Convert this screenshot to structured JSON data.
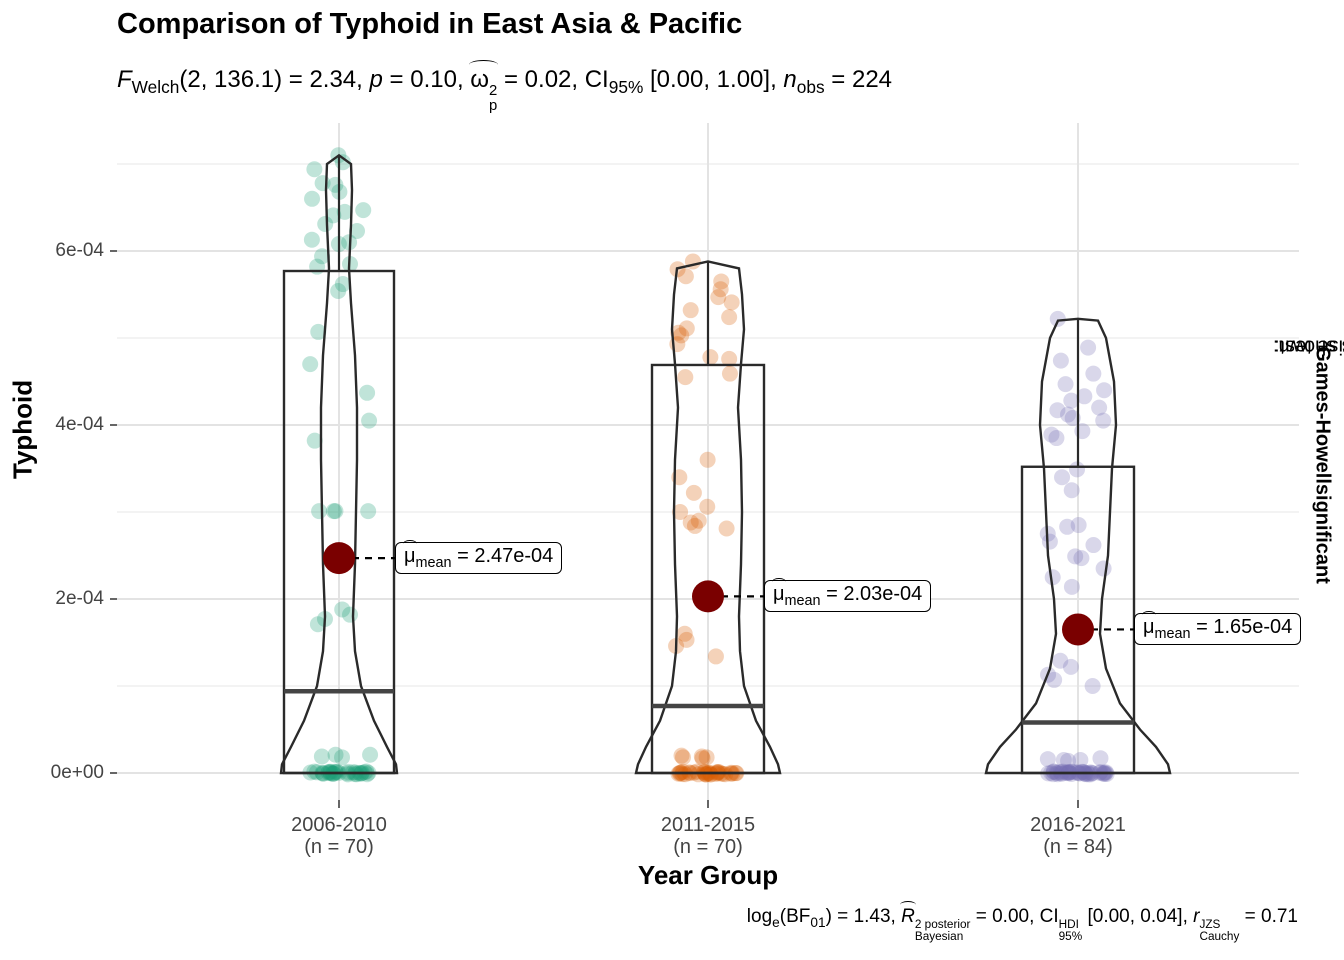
{
  "chart_data": {
    "type": "violin-box-scatter",
    "title": "Comparison of Typhoid in East Asia & Pacific",
    "subtitle": {
      "stat": "2.34",
      "df": "2, 136.1",
      "p": "0.10",
      "omega2": "0.02",
      "ci": "[0.00, 1.00]",
      "n_obs": "224"
    },
    "caption": {
      "log_bf01": "1.43",
      "r2_bayes": "0.00",
      "ci_hdi": "[0.00, 0.04]",
      "r_cauchy": "0.71"
    },
    "xlabel": "Year Group",
    "ylabel": "Typhoid",
    "right_label": {
      "prefix": "Pairwise test: ",
      "test": "Games-Howell",
      "middle": ", Bars shown: ",
      "shown": "significant"
    },
    "ylim": [
      -2e-08,
      0.00074
    ],
    "y_ticks": [
      {
        "value": 0.0,
        "label": "0e+00"
      },
      {
        "value": 0.0002,
        "label": "2e-04"
      },
      {
        "value": 0.0004,
        "label": "4e-04"
      },
      {
        "value": 0.0006,
        "label": "6e-04"
      }
    ],
    "grid": true,
    "groups": [
      {
        "category": "2006-2010",
        "n_label": "(n = 70)",
        "color": "#1B9E77",
        "mean": 0.000247,
        "mean_label": "2.47e-04",
        "box": {
          "q1": 0.0,
          "median": 9.4e-05,
          "q3": 0.000577,
          "whisker_low": 0.0,
          "whisker_high": 0.00071
        },
        "violin_max": 0.00071,
        "points": [
          0.00071,
          0.000702,
          0.000694,
          0.000678,
          0.000676,
          0.000668,
          0.00066,
          0.000647,
          0.000645,
          0.000641,
          0.000631,
          0.000623,
          0.00061,
          0.000613,
          0.000608,
          0.000594,
          0.000585,
          0.000582,
          0.000562,
          0.000554,
          0.000507,
          0.00047,
          0.000437,
          0.000405,
          0.000382,
          0.000301,
          0.000301,
          0.000301,
          0.000301,
          0.000188,
          0.000182,
          0.000177,
          0.000171,
          2.1e-05,
          2.1e-05,
          1.9e-05,
          1.8e-05,
          0.0,
          0.0,
          0.0,
          0.0,
          0.0,
          0.0,
          0.0,
          0.0,
          0.0,
          0.0,
          0.0,
          0.0,
          0.0,
          0.0,
          0.0,
          0.0,
          0.0,
          0.0,
          0.0,
          0.0,
          0.0,
          0.0,
          0.0,
          0.0,
          0.0,
          0.0,
          0.0,
          0.0,
          0.0,
          0.0,
          0.0,
          0.0,
          0.0
        ]
      },
      {
        "category": "2011-2015",
        "n_label": "(n = 70)",
        "color": "#D95F02",
        "mean": 0.000203,
        "mean_label": "2.03e-04",
        "box": {
          "q1": 0.0,
          "median": 7.7e-05,
          "q3": 0.000469,
          "whisker_low": 0.0,
          "whisker_high": 0.000588
        },
        "violin_max": 0.000588,
        "points": [
          0.000588,
          0.000579,
          0.000571,
          0.000565,
          0.000556,
          0.000547,
          0.000541,
          0.000532,
          0.000524,
          0.000511,
          0.000506,
          0.000503,
          0.000493,
          0.000478,
          0.000476,
          0.000459,
          0.000455,
          0.00036,
          0.00034,
          0.000322,
          0.000306,
          0.0003,
          0.00029,
          0.000288,
          0.000284,
          0.000281,
          0.00016,
          0.000153,
          0.000146,
          0.000134,
          2e-05,
          1.9e-05,
          1.8e-05,
          1.8e-05,
          1.7e-05,
          0.0,
          0.0,
          0.0,
          0.0,
          0.0,
          0.0,
          0.0,
          0.0,
          0.0,
          0.0,
          0.0,
          0.0,
          0.0,
          0.0,
          0.0,
          0.0,
          0.0,
          0.0,
          0.0,
          0.0,
          0.0,
          0.0,
          0.0,
          0.0,
          0.0,
          0.0,
          0.0,
          0.0,
          0.0,
          0.0,
          0.0,
          0.0,
          0.0,
          0.0,
          0.0
        ]
      },
      {
        "category": "2016-2021",
        "n_label": "(n = 84)",
        "color": "#7570B3",
        "mean": 0.000165,
        "mean_label": "1.65e-04",
        "box": {
          "q1": 0.0,
          "median": 5.8e-05,
          "q3": 0.000352,
          "whisker_low": 0.0,
          "whisker_high": 0.000522
        },
        "violin_max": 0.000522,
        "points": [
          0.000522,
          0.000489,
          0.000474,
          0.000459,
          0.000447,
          0.00044,
          0.000433,
          0.000428,
          0.00042,
          0.000417,
          0.000412,
          0.000408,
          0.000405,
          0.000393,
          0.000389,
          0.000385,
          0.000349,
          0.00034,
          0.000325,
          0.000285,
          0.000283,
          0.000275,
          0.000266,
          0.000262,
          0.000249,
          0.000247,
          0.000235,
          0.000225,
          0.000214,
          0.000129,
          0.000122,
          0.000113,
          0.000107,
          0.0001,
          1.7e-05,
          1.6e-05,
          1.5e-05,
          1.5e-05,
          1.4e-05,
          0.0,
          0.0,
          0.0,
          0.0,
          0.0,
          0.0,
          0.0,
          0.0,
          0.0,
          0.0,
          0.0,
          0.0,
          0.0,
          0.0,
          0.0,
          0.0,
          0.0,
          0.0,
          0.0,
          0.0,
          0.0,
          0.0,
          0.0,
          0.0,
          0.0,
          0.0,
          0.0,
          0.0,
          0.0,
          0.0,
          0.0,
          0.0,
          0.0,
          0.0,
          0.0,
          0.0,
          0.0,
          0.0,
          0.0,
          0.0,
          0.0,
          0.0,
          0.0,
          0.0,
          0.0
        ]
      }
    ]
  }
}
